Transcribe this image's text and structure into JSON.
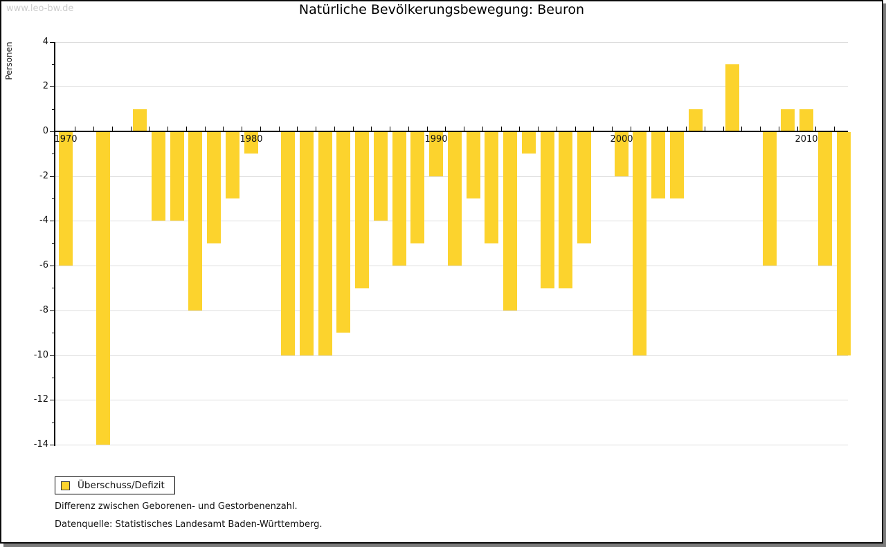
{
  "watermark": "www.leo-bw.de",
  "title": "Natürliche Bevölkerungsbewegung: Beuron",
  "legend": {
    "label": "Überschuss/Defizit"
  },
  "footnotes": [
    "Differenz zwischen Geborenen- und Gestorbenenzahl.",
    "Datenquelle: Statistisches Landesamt Baden-Württemberg."
  ],
  "colors": {
    "bar": "#FCD32D",
    "grid": "#DDDDDD",
    "axis": "#000000",
    "watermark": "#CCCCCC",
    "frame_shadow": "#7B7B7B"
  },
  "chart_data": {
    "type": "bar",
    "title": "Natürliche Bevölkerungsbewegung: Beuron",
    "xlabel": "",
    "ylabel": "Personen",
    "series_name": "Überschuss/Defizit",
    "years": [
      1970,
      1971,
      1972,
      1973,
      1974,
      1975,
      1976,
      1977,
      1978,
      1979,
      1980,
      1981,
      1982,
      1983,
      1984,
      1985,
      1986,
      1987,
      1988,
      1989,
      1990,
      1991,
      1992,
      1993,
      1994,
      1995,
      1996,
      1997,
      1998,
      1999,
      2000,
      2001,
      2002,
      2003,
      2004,
      2005,
      2006,
      2007,
      2008,
      2009,
      2010,
      2011,
      2012
    ],
    "values": [
      -6,
      0,
      -14,
      0,
      1,
      -4,
      -4,
      -8,
      -5,
      -3,
      -1,
      0,
      -10,
      -10,
      -10,
      -9,
      -7,
      -4,
      -6,
      -5,
      -2,
      -6,
      -3,
      -5,
      -8,
      -1,
      -7,
      -7,
      -5,
      0,
      -2,
      -10,
      -3,
      -3,
      1,
      0,
      3,
      0,
      -6,
      1,
      1,
      -6,
      -10
    ],
    "ylim": [
      -14,
      4
    ],
    "yticks": [
      4,
      2,
      0,
      -2,
      -4,
      -6,
      -8,
      -10,
      -12,
      -14
    ],
    "xticks": [
      1970,
      1980,
      1990,
      2000,
      2010
    ],
    "grid": true,
    "legend_position": "bottom-left"
  }
}
